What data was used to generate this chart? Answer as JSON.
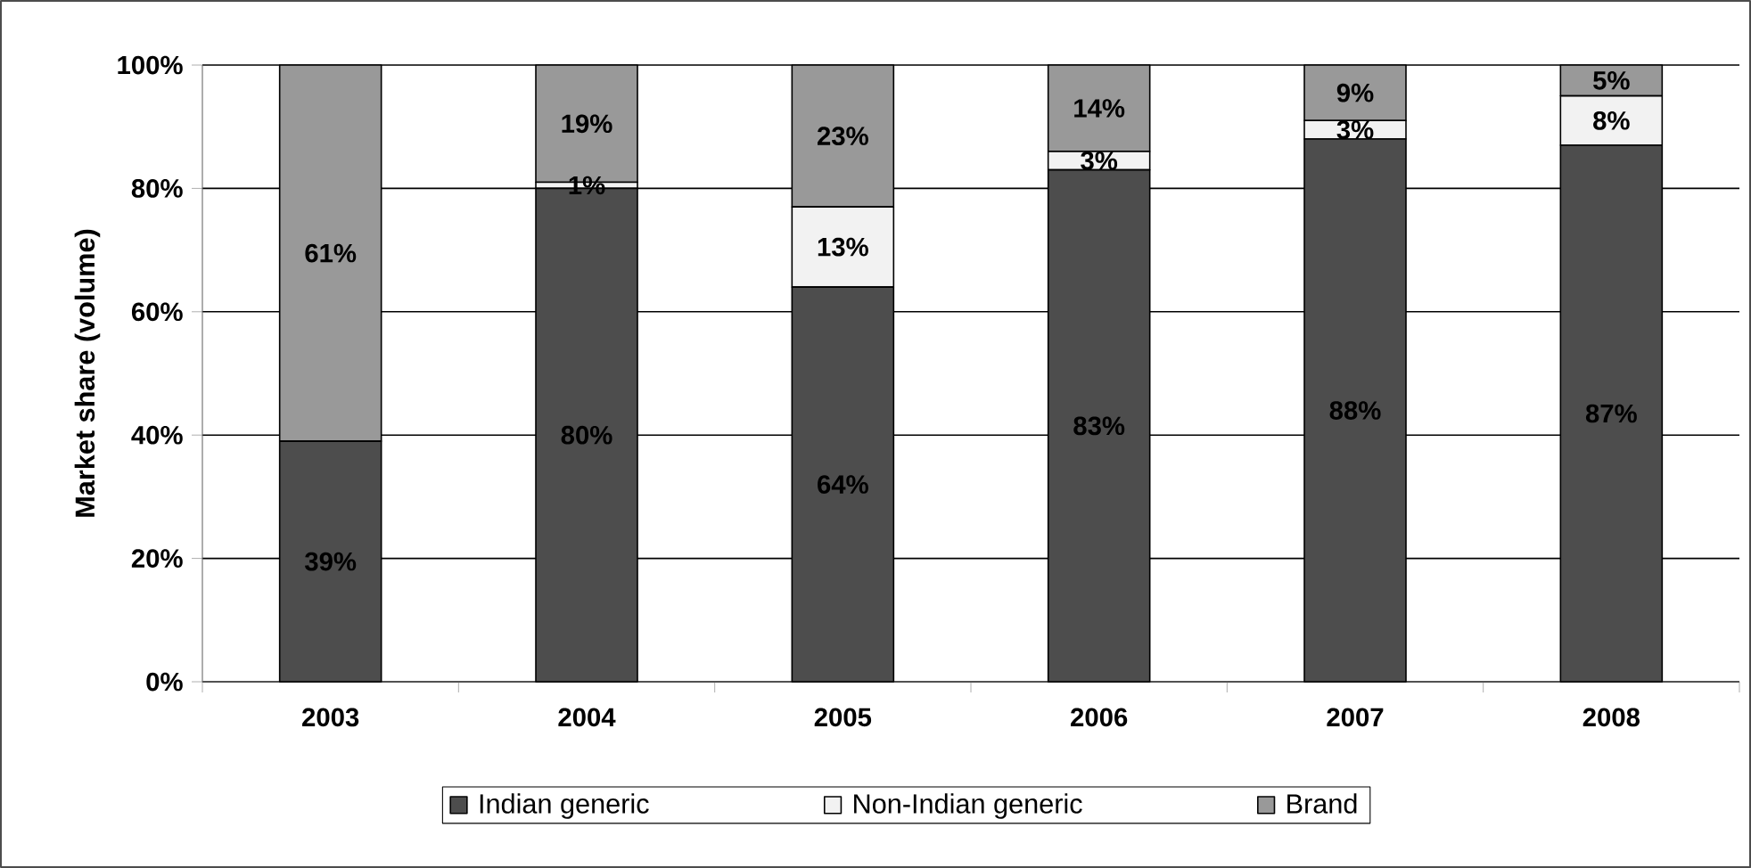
{
  "chart_data": {
    "type": "bar",
    "stacked": true,
    "ylabel": "Market share (volume)",
    "categories": [
      "2003",
      "2004",
      "2005",
      "2006",
      "2007",
      "2008"
    ],
    "series": [
      {
        "name": "Indian generic",
        "color": "#4d4d4d",
        "values": [
          39,
          80,
          64,
          83,
          88,
          87
        ],
        "value_labels": [
          "39%",
          "80%",
          "64%",
          "83%",
          "88%",
          "87%"
        ]
      },
      {
        "name": "Non-Indian generic",
        "color": "#f2f2f2",
        "values": [
          null,
          1,
          13,
          3,
          3,
          8
        ],
        "value_labels": [
          null,
          "1%",
          "13%",
          "3%",
          "3%",
          "8%"
        ]
      },
      {
        "name": "Brand",
        "color": "#999999",
        "values": [
          61,
          19,
          23,
          14,
          9,
          5
        ],
        "value_labels": [
          "61%",
          "19%",
          "23%",
          "14%",
          "9%",
          "5%"
        ]
      }
    ],
    "ylim": [
      0,
      100
    ],
    "yticks": [
      {
        "value": 0,
        "label": "0%"
      },
      {
        "value": 20,
        "label": "20%"
      },
      {
        "value": 40,
        "label": "40%"
      },
      {
        "value": 60,
        "label": "60%"
      },
      {
        "value": 80,
        "label": "80%"
      },
      {
        "value": 100,
        "label": "100%"
      }
    ],
    "grid": "y",
    "legend": "bottom"
  }
}
